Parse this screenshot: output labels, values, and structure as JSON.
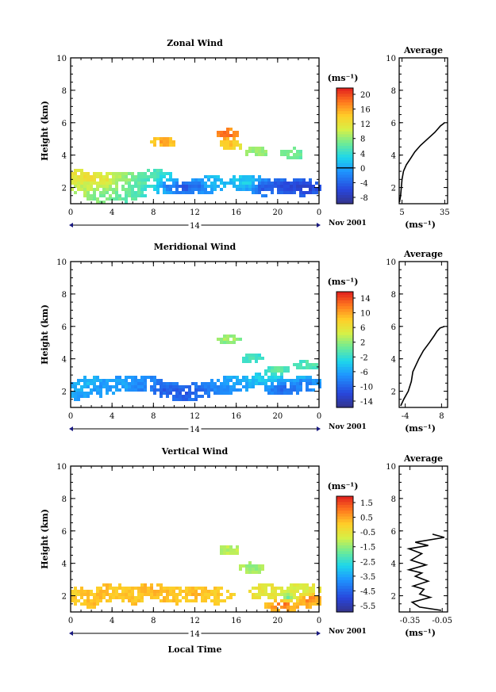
{
  "chart_data": [
    {
      "type": "heatmap",
      "title": "Zonal Wind",
      "ylabel": "Height (km)",
      "xlabel": "",
      "x_ticks": [
        "0",
        "4",
        "8",
        "12",
        "16",
        "20",
        "0"
      ],
      "y_ticks": [
        "2",
        "4",
        "6",
        "8",
        "10"
      ],
      "xlim": [
        0,
        24
      ],
      "ylim": [
        1,
        10
      ],
      "day_label": "14",
      "date_label": "Nov 2001",
      "colorbar": {
        "unit": "(ms⁻¹)",
        "ticks": [
          "20",
          "16",
          "12",
          "8",
          "4",
          "0",
          "-4",
          "-8"
        ],
        "range": [
          -10,
          22
        ],
        "contour": 0
      },
      "blobs": [
        {
          "x": 0.3,
          "y": 2.9,
          "v": 12
        },
        {
          "x": 1.3,
          "y": 2.1,
          "v": 10
        },
        {
          "x": 1.8,
          "y": 2.6,
          "v": 14
        },
        {
          "x": 3.2,
          "y": 2.4,
          "v": 13
        },
        {
          "x": 3.0,
          "y": 1.6,
          "v": 7
        },
        {
          "x": 5.0,
          "y": 2.5,
          "v": 9
        },
        {
          "x": 5.5,
          "y": 1.6,
          "v": 6
        },
        {
          "x": 7.0,
          "y": 2.3,
          "v": 6
        },
        {
          "x": 8.0,
          "y": 2.8,
          "v": 5
        },
        {
          "x": 9.5,
          "y": 2.1,
          "v": -3
        },
        {
          "x": 10.8,
          "y": 2.0,
          "v": -7
        },
        {
          "x": 12.2,
          "y": 2.1,
          "v": -5
        },
        {
          "x": 13.5,
          "y": 2.2,
          "v": 2
        },
        {
          "x": 15.2,
          "y": 5.3,
          "v": 20
        },
        {
          "x": 15.4,
          "y": 4.6,
          "v": 15
        },
        {
          "x": 18.0,
          "y": 4.2,
          "v": 8
        },
        {
          "x": 17.0,
          "y": 2.3,
          "v": 3
        },
        {
          "x": 18.8,
          "y": 2.0,
          "v": -6
        },
        {
          "x": 20.5,
          "y": 2.1,
          "v": -7
        },
        {
          "x": 22.5,
          "y": 2.0,
          "v": -8
        },
        {
          "x": 21.5,
          "y": 4.1,
          "v": 7
        },
        {
          "x": 9.0,
          "y": 4.8,
          "v": 17
        }
      ],
      "profile": {
        "title": "Average",
        "x_ticks": [
          "5",
          "35"
        ],
        "xlim": [
          3,
          37
        ],
        "xlabel": "(ms⁻¹)",
        "y_ticks": [
          "2",
          "4",
          "6",
          "8",
          "10"
        ],
        "ylim": [
          1,
          10
        ],
        "points": [
          [
            3.2,
            1.1
          ],
          [
            4,
            1.5
          ],
          [
            4.5,
            2
          ],
          [
            5,
            2.5
          ],
          [
            6,
            3
          ],
          [
            8,
            3.4
          ],
          [
            11,
            3.8
          ],
          [
            14,
            4.2
          ],
          [
            18,
            4.6
          ],
          [
            23,
            5.0
          ],
          [
            28,
            5.4
          ],
          [
            32,
            5.8
          ],
          [
            35,
            6.0
          ]
        ]
      }
    },
    {
      "type": "heatmap",
      "title": "Meridional Wind",
      "ylabel": "Height (km)",
      "xlabel": "",
      "x_ticks": [
        "0",
        "4",
        "8",
        "12",
        "16",
        "20",
        "0"
      ],
      "y_ticks": [
        "2",
        "4",
        "6",
        "8",
        "10"
      ],
      "xlim": [
        0,
        24
      ],
      "ylim": [
        1,
        10
      ],
      "day_label": "14",
      "date_label": "Nov 2001",
      "colorbar": {
        "unit": "(ms⁻¹)",
        "ticks": [
          "14",
          "10",
          "6",
          "2",
          "-2",
          "-6",
          "-10",
          "-14"
        ],
        "range": [
          -16,
          16
        ],
        "contour": 0
      },
      "blobs": [
        {
          "x": 0.5,
          "y": 2.0,
          "v": -6
        },
        {
          "x": 1.5,
          "y": 2.5,
          "v": -5
        },
        {
          "x": 3.0,
          "y": 2.2,
          "v": -7
        },
        {
          "x": 5.0,
          "y": 2.4,
          "v": -6
        },
        {
          "x": 7.0,
          "y": 2.5,
          "v": -8
        },
        {
          "x": 9.0,
          "y": 2.1,
          "v": -11
        },
        {
          "x": 11.0,
          "y": 1.9,
          "v": -12
        },
        {
          "x": 12.5,
          "y": 2.1,
          "v": -10
        },
        {
          "x": 14.5,
          "y": 2.3,
          "v": -8
        },
        {
          "x": 16.0,
          "y": 2.5,
          "v": -6
        },
        {
          "x": 17.5,
          "y": 4.0,
          "v": -1
        },
        {
          "x": 18.5,
          "y": 2.8,
          "v": -3
        },
        {
          "x": 20.5,
          "y": 2.2,
          "v": -11
        },
        {
          "x": 22.5,
          "y": 2.4,
          "v": -9
        },
        {
          "x": 15.3,
          "y": 5.2,
          "v": 3
        },
        {
          "x": 20.0,
          "y": 3.3,
          "v": 1
        },
        {
          "x": 22.8,
          "y": 3.6,
          "v": 0
        }
      ],
      "profile": {
        "title": "Average",
        "x_ticks": [
          "-4",
          "8"
        ],
        "xlim": [
          -6,
          10
        ],
        "xlabel": "(ms⁻¹)",
        "y_ticks": [
          "2",
          "4",
          "6",
          "8",
          "10"
        ],
        "ylim": [
          1,
          10
        ],
        "points": [
          [
            -5.5,
            1.1
          ],
          [
            -4.5,
            1.5
          ],
          [
            -3,
            2
          ],
          [
            -2,
            2.6
          ],
          [
            -1.5,
            3.2
          ],
          [
            -0.5,
            3.6
          ],
          [
            0.5,
            4.0
          ],
          [
            2,
            4.5
          ],
          [
            4,
            5.0
          ],
          [
            5.5,
            5.4
          ],
          [
            6.5,
            5.7
          ],
          [
            7.5,
            5.9
          ],
          [
            9,
            6.0
          ]
        ]
      }
    },
    {
      "type": "heatmap",
      "title": "Vertical Wind",
      "ylabel": "Height (km)",
      "xlabel": "Local Time",
      "x_ticks": [
        "0",
        "4",
        "8",
        "12",
        "16",
        "20",
        "0"
      ],
      "y_ticks": [
        "2",
        "4",
        "6",
        "8",
        "10"
      ],
      "xlim": [
        0,
        24
      ],
      "ylim": [
        1,
        10
      ],
      "day_label": "14",
      "date_label": "Nov 2001",
      "colorbar": {
        "unit": "(ms⁻¹)",
        "ticks": [
          "1.5",
          "0.5",
          "-0.5",
          "-1.5",
          "-2.5",
          "-3.5",
          "-4.5",
          "-5.5"
        ],
        "range": [
          -6,
          2
        ],
        "contour": null
      },
      "blobs": [
        {
          "x": 0.5,
          "y": 2.0,
          "v": 0.0
        },
        {
          "x": 2.0,
          "y": 1.8,
          "v": 0.3
        },
        {
          "x": 4.0,
          "y": 2.2,
          "v": 0.2
        },
        {
          "x": 6.0,
          "y": 2.0,
          "v": 0.1
        },
        {
          "x": 8.0,
          "y": 2.3,
          "v": 0.4
        },
        {
          "x": 10.0,
          "y": 2.0,
          "v": 0.2
        },
        {
          "x": 12.0,
          "y": 2.1,
          "v": 0.3
        },
        {
          "x": 14.0,
          "y": 2.0,
          "v": 0.1
        },
        {
          "x": 15.3,
          "y": 4.8,
          "v": -1.2
        },
        {
          "x": 17.5,
          "y": 3.7,
          "v": -1.6
        },
        {
          "x": 19.0,
          "y": 2.2,
          "v": -0.6
        },
        {
          "x": 21.0,
          "y": 1.9,
          "v": -2.2
        },
        {
          "x": 22.5,
          "y": 2.3,
          "v": -1.0
        },
        {
          "x": 20.5,
          "y": 1.5,
          "v": 1.6
        },
        {
          "x": 23.0,
          "y": 1.8,
          "v": 1.2
        }
      ],
      "profile": {
        "title": "Average",
        "x_ticks": [
          "-0.35",
          "-0.05"
        ],
        "xlim": [
          -0.45,
          0.0
        ],
        "xlabel": "(ms⁻¹)",
        "y_ticks": [
          "2",
          "4",
          "6",
          "8",
          "10"
        ],
        "ylim": [
          1,
          10
        ],
        "points": [
          [
            -0.06,
            1.1
          ],
          [
            -0.26,
            1.3
          ],
          [
            -0.33,
            1.6
          ],
          [
            -0.16,
            1.9
          ],
          [
            -0.26,
            2.1
          ],
          [
            -0.22,
            2.4
          ],
          [
            -0.32,
            2.6
          ],
          [
            -0.18,
            2.9
          ],
          [
            -0.3,
            3.2
          ],
          [
            -0.24,
            3.4
          ],
          [
            -0.36,
            3.6
          ],
          [
            -0.2,
            3.9
          ],
          [
            -0.34,
            4.2
          ],
          [
            -0.24,
            4.6
          ],
          [
            -0.36,
            4.9
          ],
          [
            -0.18,
            5.1
          ],
          [
            -0.3,
            5.3
          ],
          [
            -0.03,
            5.6
          ],
          [
            -0.14,
            5.8
          ]
        ]
      }
    }
  ]
}
